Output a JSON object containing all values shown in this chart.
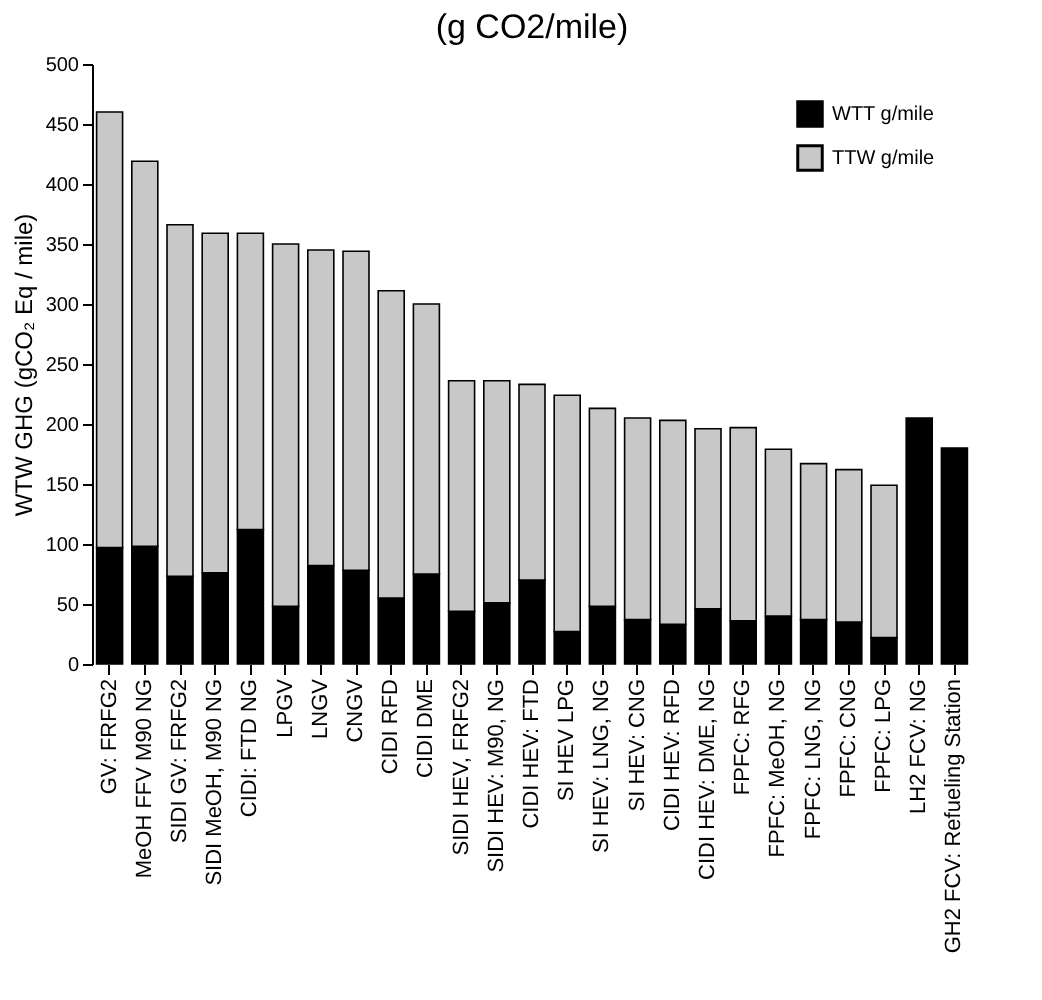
{
  "chart_data": {
    "type": "bar",
    "title": "(g CO2/mile)",
    "ylabel": "WTW GHG (gCO₂ Eq / mile)",
    "categories": [
      "GV: FRFG2",
      "MeOH FFV M90 NG",
      "SIDI GV: FRFG2",
      "SIDI MeOH, M90 NG",
      "CIDI: FTD NG",
      "LPGV",
      "LNGV",
      "CNGV",
      "CIDI RFD",
      "CIDI DME",
      "SIDI HEV, FRFG2",
      "SIDI HEV: M90, NG",
      "CIDI HEV: FTD",
      "SI HEV LPG",
      "SI HEV: LNG, NG",
      "SI HEV: CNG",
      "CIDI HEV: RFD",
      "CIDI HEV: DME, NG",
      "FPFC: RFG",
      "FPFC: MeOH, NG",
      "FPFC: LNG, NG",
      "FPFC: CNG",
      "FPFC: LPG",
      "LH2 FCV: NG",
      "GH2 FCV: Refueling Station"
    ],
    "stacked": true,
    "series": [
      {
        "name": "WTT g/mile",
        "color": "#000000",
        "values": [
          97,
          98,
          73,
          76,
          112,
          48,
          82,
          78,
          55,
          75,
          44,
          51,
          70,
          27,
          48,
          37,
          33,
          46,
          36,
          40,
          37,
          35,
          22,
          205,
          180
        ]
      },
      {
        "name": "TTW g/mile",
        "color": "#c8c8c8",
        "values": [
          363,
          321,
          293,
          283,
          247,
          302,
          263,
          266,
          256,
          225,
          192,
          185,
          163,
          197,
          165,
          168,
          170,
          150,
          161,
          139,
          130,
          127,
          127,
          null,
          null
        ]
      }
    ],
    "ylim": [
      0,
      500
    ],
    "yticks": [
      0,
      50,
      100,
      150,
      200,
      250,
      300,
      350,
      400,
      450,
      500
    ],
    "grid": false,
    "legend": "top right"
  }
}
